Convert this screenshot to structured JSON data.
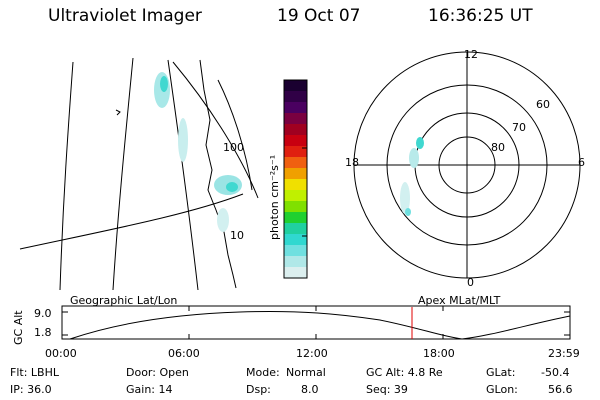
{
  "header": {
    "instrument": "Ultraviolet Imager",
    "date": "19 Oct 07",
    "time": "16:36:25 UT"
  },
  "colorbar": {
    "label": "photon cm⁻²s⁻¹",
    "ticks": [
      "100",
      "10"
    ],
    "colors": [
      "#1a0030",
      "#300046",
      "#4a0060",
      "#7a0040",
      "#a00020",
      "#c80010",
      "#e02010",
      "#f06010",
      "#f0a000",
      "#f0e000",
      "#c0f000",
      "#80e000",
      "#20d030",
      "#20d0a0",
      "#30d8d0",
      "#70e0e0",
      "#b0e8e8",
      "#dcefef"
    ]
  },
  "polar_plot": {
    "mlt_labels": {
      "top": "12",
      "bottom": "0",
      "left": "18",
      "right": "6"
    },
    "lat_labels": [
      "60",
      "70",
      "80"
    ]
  },
  "timeline": {
    "geo_label": "Geographic Lat/Lon",
    "apex_label": "Apex MLat/MLT",
    "axis_label": "GC Alt",
    "y_ticks": [
      "9.0",
      "1.8"
    ],
    "x_ticks": [
      "00:00",
      "06:00",
      "12:00",
      "18:00",
      "23:59"
    ],
    "current_marker_time": "16:36:25",
    "marker_color": "#e00000"
  },
  "info": {
    "flt": "Flt: LBHL",
    "door": "Door: Open",
    "mode_label": "Mode:",
    "mode": "Normal",
    "gc_alt": "GC Alt: 4.8 Re",
    "glat_label": "GLat:",
    "glat": "-50.4",
    "ip": "IP: 36.0",
    "gain": "Gain: 14",
    "dsp_label": "Dsp:",
    "dsp": "8.0",
    "seq": "Seq: 39",
    "glon_label": "GLon:",
    "glon": "56.6"
  }
}
